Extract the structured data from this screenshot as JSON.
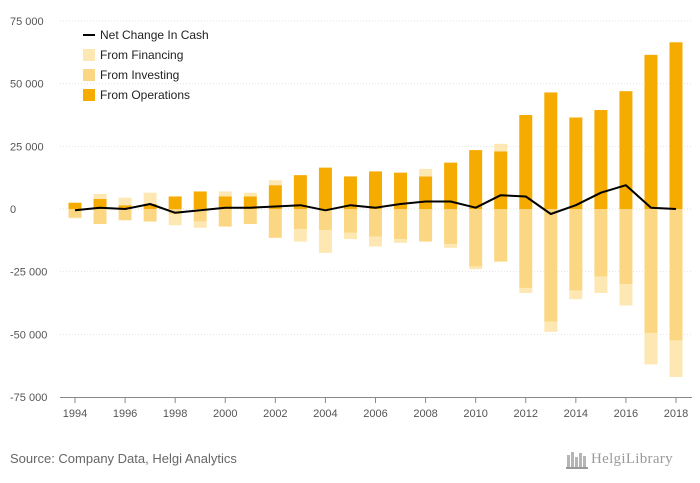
{
  "chart_data": {
    "type": "bar",
    "stacked": true,
    "years": [
      1994,
      1995,
      1996,
      1997,
      1998,
      1999,
      2000,
      2001,
      2002,
      2003,
      2004,
      2005,
      2006,
      2007,
      2008,
      2009,
      2010,
      2011,
      2012,
      2013,
      2014,
      2015,
      2016,
      2017,
      2018
    ],
    "x_tick_labels": [
      "1994",
      "1996",
      "1998",
      "2000",
      "2002",
      "2004",
      "2006",
      "2008",
      "2010",
      "2012",
      "2014",
      "2016",
      "2018"
    ],
    "y_tick_labels": [
      "75 000",
      "50 000",
      "25 000",
      "0",
      "-25 000",
      "-50 000",
      "-75 000"
    ],
    "ylim": [
      -75000,
      75000
    ],
    "grid": true,
    "legend_position": "top-left",
    "series": [
      {
        "name": "From Operations",
        "color": "#f5ab00",
        "values": [
          2500,
          4000,
          1500,
          2000,
          5000,
          7000,
          5000,
          5000,
          9500,
          13500,
          16500,
          13000,
          15000,
          14500,
          13000,
          18500,
          23500,
          23000,
          37500,
          46500,
          36500,
          39500,
          47000,
          61500,
          66500
        ]
      },
      {
        "name": "From Investing",
        "color": "#fcd783",
        "values": [
          -3500,
          -6000,
          -4500,
          -5000,
          -2000,
          -5000,
          -7000,
          -6000,
          -11500,
          -8000,
          -8500,
          -9500,
          -11000,
          -12000,
          -13000,
          -14000,
          -23000,
          -21000,
          -31500,
          -45000,
          -32500,
          -27000,
          -30000,
          -49500,
          -52500
        ]
      },
      {
        "name": "From Financing",
        "color": "#fde8b4",
        "values": [
          -200,
          2000,
          3000,
          4500,
          -4500,
          -2500,
          2000,
          1500,
          2000,
          -5000,
          -9000,
          -2500,
          -4000,
          -1500,
          3000,
          -1500,
          -1000,
          3000,
          -2000,
          -4000,
          -3500,
          -6500,
          -8500,
          -12500,
          -14500
        ]
      },
      {
        "name": "Net Change In Cash",
        "color": "#000000",
        "values": [
          -500,
          500,
          0,
          2000,
          -1500,
          -500,
          500,
          500,
          1000,
          1500,
          -500,
          1500,
          500,
          2000,
          3000,
          3000,
          500,
          5500,
          5000,
          -2000,
          1500,
          6500,
          9500,
          500,
          0
        ]
      }
    ]
  },
  "legend": [
    {
      "label": "Net Change In Cash",
      "kind": "line",
      "color": "#000000"
    },
    {
      "label": "From Financing",
      "kind": "box",
      "color": "#fde8b4"
    },
    {
      "label": "From Investing",
      "kind": "box",
      "color": "#fcd783"
    },
    {
      "label": "From Operations",
      "kind": "box",
      "color": "#f5ab00"
    }
  ],
  "source_text": "Source: Company Data, Helgi Analytics",
  "logo_text": "HelgiLibrary"
}
